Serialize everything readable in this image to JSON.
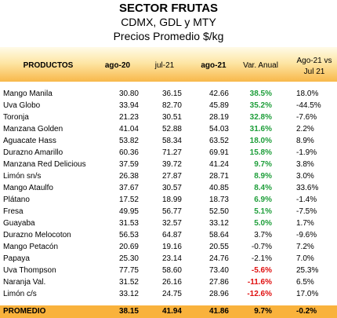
{
  "header": {
    "title": "SECTOR FRUTAS",
    "subtitle": "CDMX, GDL y MTY",
    "unit": "Precios Promedio $/kg"
  },
  "table": {
    "columns": [
      "PRODUCTOS",
      "ago-20",
      "jul-21",
      "ago-21",
      "Var. Anual",
      [
        "Ago-21 vs",
        "Jul 21"
      ]
    ],
    "rows": [
      {
        "cells": [
          "Mango Manila",
          "30.80",
          "36.15",
          "42.66",
          "38.5%",
          "18.0%"
        ],
        "color": "#1e9e3a"
      },
      {
        "cells": [
          "Uva Globo",
          "33.94",
          "82.70",
          "45.89",
          "35.2%",
          "-44.5%"
        ],
        "color": "#1e9e3a"
      },
      {
        "cells": [
          "Toronja",
          "21.23",
          "30.51",
          "28.19",
          "32.8%",
          "-7.6%"
        ],
        "color": "#1e9e3a"
      },
      {
        "cells": [
          "Manzana Golden",
          "41.04",
          "52.88",
          "54.03",
          "31.6%",
          "2.2%"
        ],
        "color": "#1e9e3a"
      },
      {
        "cells": [
          "Aguacate Hass",
          "53.82",
          "58.34",
          "63.52",
          "18.0%",
          "8.9%"
        ],
        "color": "#1e9e3a"
      },
      {
        "cells": [
          "Durazno Amarillo",
          "60.36",
          "71.27",
          "69.91",
          "15.8%",
          "-1.9%"
        ],
        "color": "#1e9e3a"
      },
      {
        "cells": [
          "Manzana Red Delicious",
          "37.59",
          "39.72",
          "41.24",
          "9.7%",
          "3.8%"
        ],
        "color": "#1e9e3a"
      },
      {
        "cells": [
          "Limón sn/s",
          "26.38",
          "27.87",
          "28.71",
          "8.9%",
          "3.0%"
        ],
        "color": "#1e9e3a"
      },
      {
        "cells": [
          "Mango Ataulfo",
          "37.67",
          "30.57",
          "40.85",
          "8.4%",
          "33.6%"
        ],
        "color": "#1e9e3a"
      },
      {
        "cells": [
          "Plátano",
          "17.52",
          "18.99",
          "18.73",
          "6.9%",
          "-1.4%"
        ],
        "color": "#1e9e3a"
      },
      {
        "cells": [
          "Fresa",
          "49.95",
          "56.77",
          "52.50",
          "5.1%",
          "-7.5%"
        ],
        "color": "#1e9e3a"
      },
      {
        "cells": [
          "Guayaba",
          "31.53",
          "32.57",
          "33.12",
          "5.0%",
          "1.7%"
        ],
        "color": "#1e9e3a"
      },
      {
        "cells": [
          "Durazno Melocoton",
          "56.53",
          "64.87",
          "58.64",
          "3.7%",
          "-9.6%"
        ]
      },
      {
        "cells": [
          "Mango Petacón",
          "20.69",
          "19.16",
          "20.55",
          "-0.7%",
          "7.2%"
        ]
      },
      {
        "cells": [
          "Papaya",
          "25.30",
          "23.14",
          "24.76",
          "-2.1%",
          "7.0%"
        ]
      },
      {
        "cells": [
          "Uva Thompson",
          "77.75",
          "58.60",
          "73.40",
          "-5.6%",
          "25.3%"
        ],
        "color": "#e01010"
      },
      {
        "cells": [
          "Naranja Val.",
          "31.52",
          "26.16",
          "27.86",
          "-11.6%",
          "6.5%"
        ],
        "color": "#e01010"
      },
      {
        "cells": [
          "Limón c/s",
          "33.12",
          "24.75",
          "28.96",
          "-12.6%",
          "17.0%"
        ],
        "color": "#e01010"
      }
    ],
    "footer": [
      "PROMEDIO",
      "38.15",
      "41.94",
      "41.86",
      "9.7%",
      "-0.2%"
    ]
  }
}
